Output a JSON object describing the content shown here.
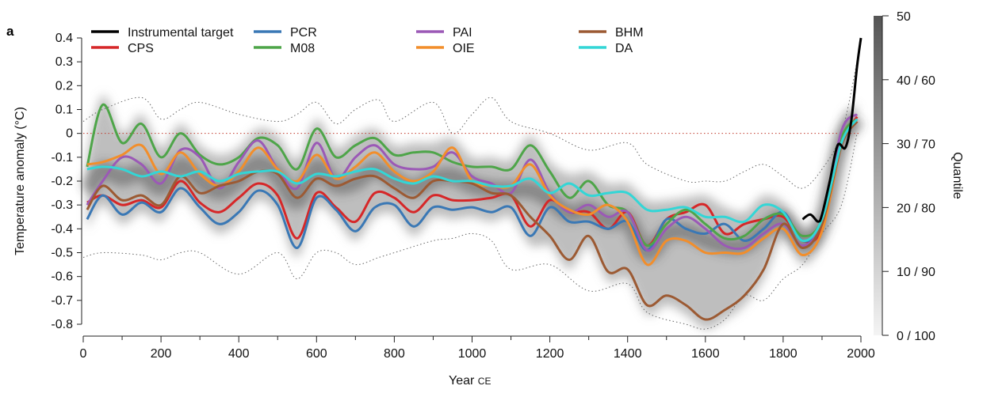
{
  "panel_label": "a",
  "chart_data": {
    "type": "line",
    "title": "",
    "xlabel": "Year",
    "xlabel_suffix": "CE",
    "ylabel": "Temperature anomaly (°C)",
    "xlim": [
      0,
      2000
    ],
    "ylim": [
      -0.8,
      0.4
    ],
    "x_ticks": [
      "0",
      "200",
      "400",
      "600",
      "800",
      "1000",
      "1200",
      "1400",
      "1600",
      "1800",
      "2000"
    ],
    "y_ticks": [
      "0.4",
      "0.3",
      "0.2",
      "0.1",
      "0",
      "-0.1",
      "-0.2",
      "-0.3",
      "-0.4",
      "-0.5",
      "-0.6",
      "-0.7",
      "-0.8"
    ],
    "grid": false,
    "reference_line": 0,
    "legend_position": "top",
    "colorbar": {
      "label": "Quantile",
      "ticks": [
        "50",
        "40 / 60",
        "30 / 70",
        "20 / 80",
        "10 / 90",
        "0 / 100"
      ]
    },
    "x": [
      10,
      50,
      100,
      150,
      200,
      250,
      300,
      350,
      400,
      450,
      500,
      550,
      600,
      650,
      700,
      750,
      800,
      850,
      900,
      950,
      1000,
      1050,
      1100,
      1150,
      1200,
      1250,
      1300,
      1350,
      1400,
      1450,
      1500,
      1550,
      1600,
      1650,
      1700,
      1750,
      1800,
      1850,
      1900,
      1950,
      1990
    ],
    "series": [
      {
        "name": "Instrumental target",
        "color": "#000000",
        "x": [
          1850,
          1870,
          1890,
          1900,
          1920,
          1940,
          1960,
          1975,
          1990,
          2000
        ],
        "values": [
          -0.36,
          -0.34,
          -0.37,
          -0.34,
          -0.2,
          -0.05,
          -0.06,
          0.05,
          0.28,
          0.4
        ]
      },
      {
        "name": "CPS",
        "color": "#d62728",
        "values": [
          -0.29,
          -0.26,
          -0.3,
          -0.28,
          -0.31,
          -0.2,
          -0.29,
          -0.33,
          -0.27,
          -0.21,
          -0.26,
          -0.44,
          -0.25,
          -0.31,
          -0.37,
          -0.25,
          -0.27,
          -0.33,
          -0.26,
          -0.28,
          -0.28,
          -0.27,
          -0.26,
          -0.39,
          -0.28,
          -0.33,
          -0.33,
          -0.4,
          -0.33,
          -0.47,
          -0.36,
          -0.33,
          -0.3,
          -0.42,
          -0.38,
          -0.36,
          -0.35,
          -0.45,
          -0.4,
          -0.05,
          0.07
        ]
      },
      {
        "name": "PCR",
        "color": "#3a78b5",
        "values": [
          -0.36,
          -0.26,
          -0.34,
          -0.29,
          -0.33,
          -0.23,
          -0.31,
          -0.38,
          -0.33,
          -0.24,
          -0.3,
          -0.48,
          -0.27,
          -0.32,
          -0.41,
          -0.31,
          -0.3,
          -0.39,
          -0.31,
          -0.32,
          -0.31,
          -0.33,
          -0.31,
          -0.43,
          -0.31,
          -0.37,
          -0.37,
          -0.4,
          -0.37,
          -0.49,
          -0.36,
          -0.4,
          -0.42,
          -0.38,
          -0.45,
          -0.4,
          -0.33,
          -0.45,
          -0.38,
          -0.05,
          0.05
        ]
      },
      {
        "name": "M08",
        "color": "#4ea549",
        "values": [
          -0.14,
          0.12,
          -0.04,
          0.04,
          -0.1,
          0.0,
          -0.09,
          -0.13,
          -0.1,
          -0.02,
          -0.05,
          -0.15,
          0.02,
          -0.1,
          -0.05,
          -0.02,
          -0.09,
          -0.08,
          -0.08,
          -0.12,
          -0.14,
          -0.14,
          -0.15,
          -0.05,
          -0.16,
          -0.27,
          -0.2,
          -0.3,
          -0.33,
          -0.47,
          -0.38,
          -0.32,
          -0.38,
          -0.44,
          -0.43,
          -0.36,
          -0.34,
          -0.43,
          -0.36,
          -0.02,
          0.06
        ]
      },
      {
        "name": "PAI",
        "color": "#9b59b6",
        "values": [
          -0.3,
          -0.2,
          -0.1,
          -0.13,
          -0.21,
          -0.07,
          -0.1,
          -0.23,
          -0.12,
          -0.03,
          -0.15,
          -0.23,
          -0.04,
          -0.19,
          -0.1,
          -0.05,
          -0.13,
          -0.15,
          -0.14,
          -0.08,
          -0.18,
          -0.21,
          -0.25,
          -0.11,
          -0.25,
          -0.33,
          -0.3,
          -0.35,
          -0.33,
          -0.49,
          -0.4,
          -0.35,
          -0.4,
          -0.47,
          -0.48,
          -0.42,
          -0.38,
          -0.47,
          -0.37,
          0.01,
          0.08
        ]
      },
      {
        "name": "OIE",
        "color": "#f28e2b",
        "values": [
          -0.13,
          -0.12,
          -0.09,
          -0.05,
          -0.17,
          -0.08,
          -0.17,
          -0.22,
          -0.16,
          -0.06,
          -0.15,
          -0.2,
          -0.09,
          -0.19,
          -0.14,
          -0.08,
          -0.16,
          -0.2,
          -0.16,
          -0.06,
          -0.2,
          -0.22,
          -0.22,
          -0.13,
          -0.26,
          -0.32,
          -0.34,
          -0.3,
          -0.37,
          -0.55,
          -0.45,
          -0.45,
          -0.5,
          -0.5,
          -0.5,
          -0.44,
          -0.4,
          -0.51,
          -0.41,
          -0.05,
          0.05
        ]
      },
      {
        "name": "BHM",
        "color": "#9c5a33",
        "values": [
          -0.32,
          -0.22,
          -0.28,
          -0.26,
          -0.3,
          -0.18,
          -0.25,
          -0.22,
          -0.2,
          -0.16,
          -0.17,
          -0.27,
          -0.19,
          -0.22,
          -0.19,
          -0.18,
          -0.23,
          -0.27,
          -0.2,
          -0.2,
          -0.21,
          -0.25,
          -0.26,
          -0.35,
          -0.43,
          -0.53,
          -0.43,
          -0.58,
          -0.57,
          -0.72,
          -0.68,
          -0.72,
          -0.78,
          -0.74,
          -0.68,
          -0.57,
          -0.38,
          -0.48,
          -0.38,
          -0.05,
          0.05
        ]
      },
      {
        "name": "DA",
        "color": "#33d6d6",
        "values": [
          -0.15,
          -0.14,
          -0.15,
          -0.18,
          -0.16,
          -0.18,
          -0.16,
          -0.2,
          -0.17,
          -0.16,
          -0.16,
          -0.21,
          -0.17,
          -0.18,
          -0.16,
          -0.15,
          -0.19,
          -0.21,
          -0.18,
          -0.2,
          -0.2,
          -0.22,
          -0.22,
          -0.19,
          -0.25,
          -0.21,
          -0.26,
          -0.25,
          -0.25,
          -0.32,
          -0.32,
          -0.31,
          -0.35,
          -0.35,
          -0.37,
          -0.3,
          -0.33,
          -0.45,
          -0.36,
          -0.04,
          0.06
        ]
      }
    ],
    "envelope": {
      "x": [
        0,
        50,
        150,
        200,
        250,
        300,
        400,
        500,
        550,
        600,
        650,
        700,
        760,
        800,
        900,
        950,
        1000,
        1050,
        1100,
        1200,
        1300,
        1400,
        1450,
        1550,
        1600,
        1650,
        1700,
        1750,
        1800,
        1850,
        1900,
        1950,
        1990
      ],
      "upper": [
        0.05,
        0.1,
        0.15,
        0.06,
        0.1,
        0.13,
        0.08,
        0.05,
        0.08,
        0.13,
        0.04,
        0.1,
        0.14,
        0.05,
        0.13,
        0.0,
        0.08,
        0.15,
        0.05,
        0.0,
        -0.07,
        -0.04,
        -0.13,
        -0.2,
        -0.2,
        -0.2,
        -0.16,
        -0.13,
        -0.18,
        -0.23,
        -0.15,
        0.0,
        0.3
      ],
      "lower": [
        -0.52,
        -0.5,
        -0.51,
        -0.53,
        -0.5,
        -0.5,
        -0.59,
        -0.5,
        -0.61,
        -0.5,
        -0.5,
        -0.55,
        -0.52,
        -0.5,
        -0.45,
        -0.44,
        -0.42,
        -0.45,
        -0.57,
        -0.55,
        -0.66,
        -0.63,
        -0.75,
        -0.8,
        -0.82,
        -0.78,
        -0.68,
        -0.7,
        -0.61,
        -0.55,
        -0.42,
        -0.3,
        0.0
      ]
    }
  }
}
